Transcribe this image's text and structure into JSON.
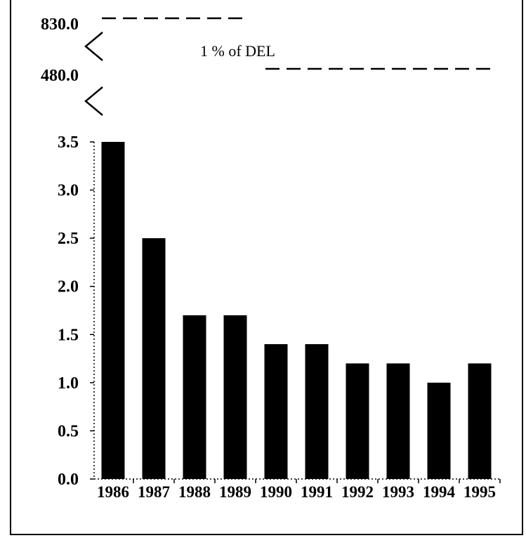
{
  "chart_data": {
    "type": "bar",
    "categories": [
      "1986",
      "1987",
      "1988",
      "1989",
      "1990",
      "1991",
      "1992",
      "1993",
      "1994",
      "1995"
    ],
    "values": [
      3.5,
      2.5,
      1.7,
      1.7,
      1.4,
      1.4,
      1.2,
      1.2,
      1.0,
      1.2
    ],
    "ylim": [
      0,
      3.5
    ],
    "yticks": [
      "0.0",
      "0.5",
      "1.0",
      "1.5",
      "2.0",
      "2.5",
      "3.0",
      "3.5"
    ],
    "broken_axis_ticks": [
      "480.0",
      "830.0"
    ],
    "reference_label": "1 % of DEL",
    "bar_color": "#000000",
    "grid": false
  }
}
